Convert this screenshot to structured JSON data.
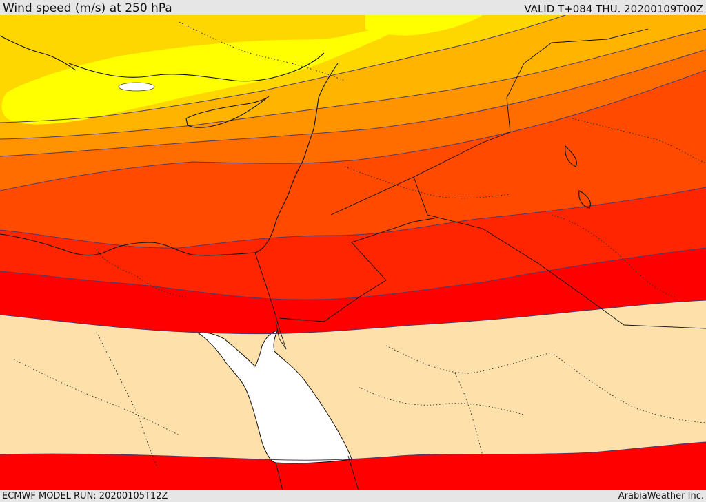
{
  "header": {
    "title": "Wind speed (m/s) at 250 hPa",
    "valid": "VALID T+084 THU. 20200109T00Z"
  },
  "footer": {
    "model_run": "ECMWF MODEL RUN: 20200105T12Z",
    "credit": "ArabiaWeather Inc."
  },
  "colors": {
    "calm_sand": "#fde0aa",
    "band_red": "#ff0000",
    "band_red_orange": "#ff2500",
    "band_dark_orange": "#ff4a00",
    "band_orange": "#ff6d00",
    "band_amber": "#ff9300",
    "band_gold": "#ffb400",
    "band_yellow_orange": "#ffd700",
    "band_yellow": "#ffff00",
    "sea_white": "#ffffff",
    "contour_line": "#4a3a6a",
    "coastline": "#111111"
  }
}
